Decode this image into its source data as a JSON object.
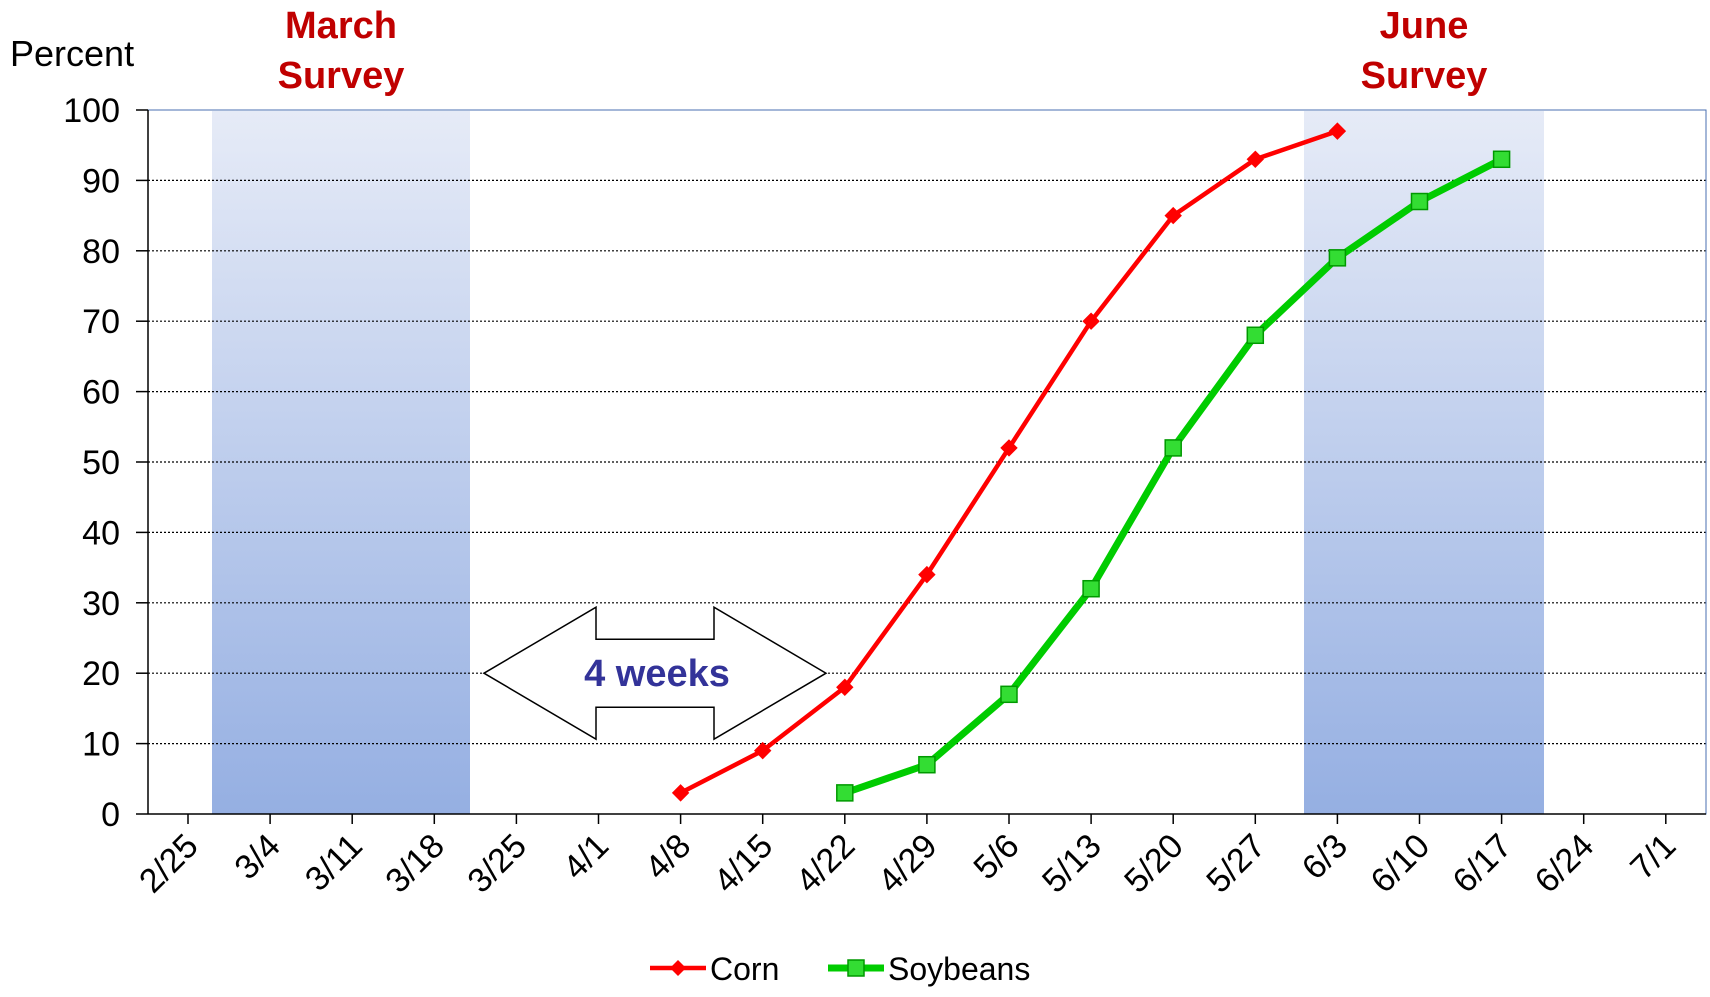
{
  "chart_data": {
    "type": "line",
    "ylabel": "Percent",
    "ylim": [
      0,
      100
    ],
    "yticks": [
      0,
      10,
      20,
      30,
      40,
      50,
      60,
      70,
      80,
      90,
      100
    ],
    "categories": [
      "2/25",
      "3/4",
      "3/11",
      "3/18",
      "3/25",
      "4/1",
      "4/8",
      "4/15",
      "4/22",
      "4/29",
      "5/6",
      "5/13",
      "5/20",
      "5/27",
      "6/3",
      "6/10",
      "6/17",
      "6/24",
      "7/1"
    ],
    "grid": true,
    "legend_position": "bottom",
    "series": [
      {
        "name": "Corn",
        "color": "#ff0000",
        "marker": "diamond",
        "points": [
          {
            "x": "4/8",
            "y": 3
          },
          {
            "x": "4/15",
            "y": 9
          },
          {
            "x": "4/22",
            "y": 18
          },
          {
            "x": "4/29",
            "y": 34
          },
          {
            "x": "5/6",
            "y": 52
          },
          {
            "x": "5/13",
            "y": 70
          },
          {
            "x": "5/20",
            "y": 85
          },
          {
            "x": "5/27",
            "y": 93
          },
          {
            "x": "6/3",
            "y": 97
          }
        ]
      },
      {
        "name": "Soybeans",
        "color": "#00cc00",
        "marker": "square",
        "points": [
          {
            "x": "4/22",
            "y": 3
          },
          {
            "x": "4/29",
            "y": 7
          },
          {
            "x": "5/6",
            "y": 17
          },
          {
            "x": "5/13",
            "y": 32
          },
          {
            "x": "5/20",
            "y": 52
          },
          {
            "x": "5/27",
            "y": 68
          },
          {
            "x": "6/3",
            "y": 79
          },
          {
            "x": "6/10",
            "y": 87
          },
          {
            "x": "6/17",
            "y": 93
          }
        ]
      }
    ],
    "bands": [
      {
        "label_line1": "March",
        "label_line2": "Survey",
        "from": "3/4",
        "to": "3/25",
        "color": "#9bb3e0"
      },
      {
        "label_line1": "June",
        "label_line2": "Survey",
        "from": "5/27",
        "to": "6/24",
        "color": "#9bb3e0"
      }
    ],
    "annotation": {
      "text": "4 weeks",
      "from": "3/25",
      "to": "4/22",
      "y": 20
    }
  }
}
